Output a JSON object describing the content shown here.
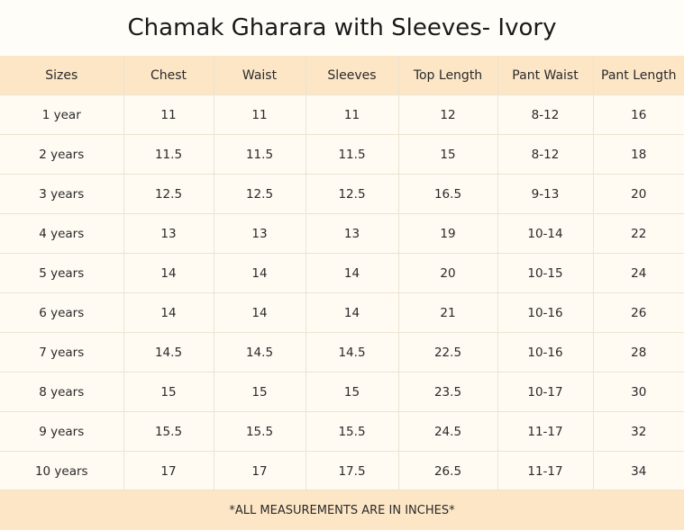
{
  "title": "Chamak Gharara with Sleeves- Ivory",
  "headers": [
    "Sizes",
    "Chest",
    "Waist",
    "Sleeves",
    "Top Length",
    "Pant Waist",
    "Pant Length"
  ],
  "rows": [
    [
      "1 year",
      "11",
      "11",
      "11",
      "12",
      "8-12",
      "16"
    ],
    [
      "2 years",
      "11.5",
      "11.5",
      "11.5",
      "15",
      "8-12",
      "18"
    ],
    [
      "3 years",
      "12.5",
      "12.5",
      "12.5",
      "16.5",
      "9-13",
      "20"
    ],
    [
      "4 years",
      "13",
      "13",
      "13",
      "19",
      "10-14",
      "22"
    ],
    [
      "5 years",
      "14",
      "14",
      "14",
      "20",
      "10-15",
      "24"
    ],
    [
      "6 years",
      "14",
      "14",
      "14",
      "21",
      "10-16",
      "26"
    ],
    [
      "7 years",
      "14.5",
      "14.5",
      "14.5",
      "22.5",
      "10-16",
      "28"
    ],
    [
      "8 years",
      "15",
      "15",
      "15",
      "23.5",
      "10-17",
      "30"
    ],
    [
      "9 years",
      "15.5",
      "15.5",
      "15.5",
      "24.5",
      "11-17",
      "32"
    ],
    [
      "10 years",
      "17",
      "17",
      "17.5",
      "26.5",
      "11-17",
      "34"
    ]
  ],
  "footer": "*ALL MEASUREMENTS ARE IN INCHES*",
  "colors": {
    "header_bg": "#fce6c6",
    "row_bg": "#fffaf2",
    "grid": "#ece4d3"
  }
}
